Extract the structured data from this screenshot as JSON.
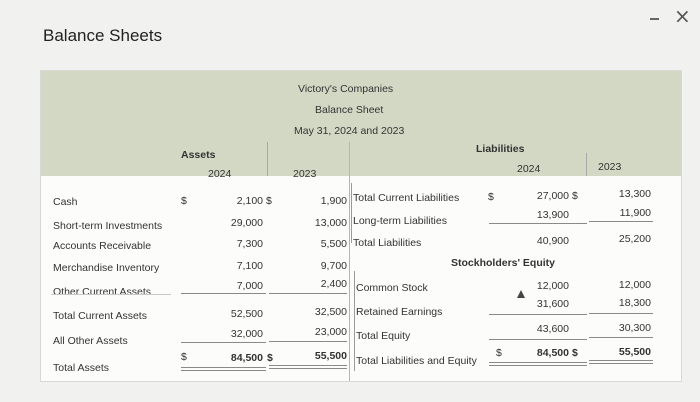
{
  "window": {
    "title": "Balance Sheets",
    "minimize": "-",
    "close": "×"
  },
  "header": {
    "company": "Victory's Companies",
    "statement": "Balance Sheet",
    "dates": "May 31, 2024 and 2023"
  },
  "assets": {
    "heading": "Assets",
    "col_2024": "2024",
    "col_2023": "2023",
    "rows": [
      {
        "label": "Cash",
        "dollar": "$",
        "v2024": "2,100",
        "d2": "$",
        "v2023": "1,900"
      },
      {
        "label": "Short-term Investments",
        "v2024": "29,000",
        "v2023": "13,000"
      },
      {
        "label": "Accounts Receivable",
        "v2024": "7,300",
        "v2023": "5,500"
      },
      {
        "label": "Merchandise Inventory",
        "v2024": "7,100",
        "v2023": "9,700"
      },
      {
        "label": "Other Current Assets",
        "v2024": "7,000",
        "v2023": "2,400"
      },
      {
        "label": "Total Current Assets",
        "v2024": "52,500",
        "v2023": "32,500"
      },
      {
        "label": "All Other Assets",
        "v2024": "32,000",
        "v2023": "23,000"
      },
      {
        "label": "Total Assets",
        "dollar": "$",
        "v2024": "84,500",
        "d2": "$",
        "v2023": "55,500"
      }
    ]
  },
  "liabilities": {
    "heading": "Liabilities",
    "col_2024": "2024",
    "col_2023": "2023",
    "equity_heading": "Stockholders' Equity",
    "rows": [
      {
        "label": "Total Current Liabilities",
        "dollar": "$",
        "v2024": "27,000",
        "d2": "$",
        "v2023": "13,300"
      },
      {
        "label": "Long-term Liabilities",
        "v2024": "13,900",
        "v2023": "11,900"
      },
      {
        "label": "Total Liabilities",
        "v2024": "40,900",
        "v2023": "25,200"
      },
      {
        "label": "Common Stock",
        "v2024": "12,000",
        "v2023": "12,000"
      },
      {
        "label": "Retained Earnings",
        "v2024": "31,600",
        "v2023": "18,300"
      },
      {
        "label": "Total Equity",
        "v2024": "43,600",
        "v2023": "30,300"
      },
      {
        "label": "Total Liabilities and Equity",
        "dollar": "$",
        "v2024": "84,500",
        "d2": "$",
        "v2023": "55,500"
      }
    ]
  }
}
